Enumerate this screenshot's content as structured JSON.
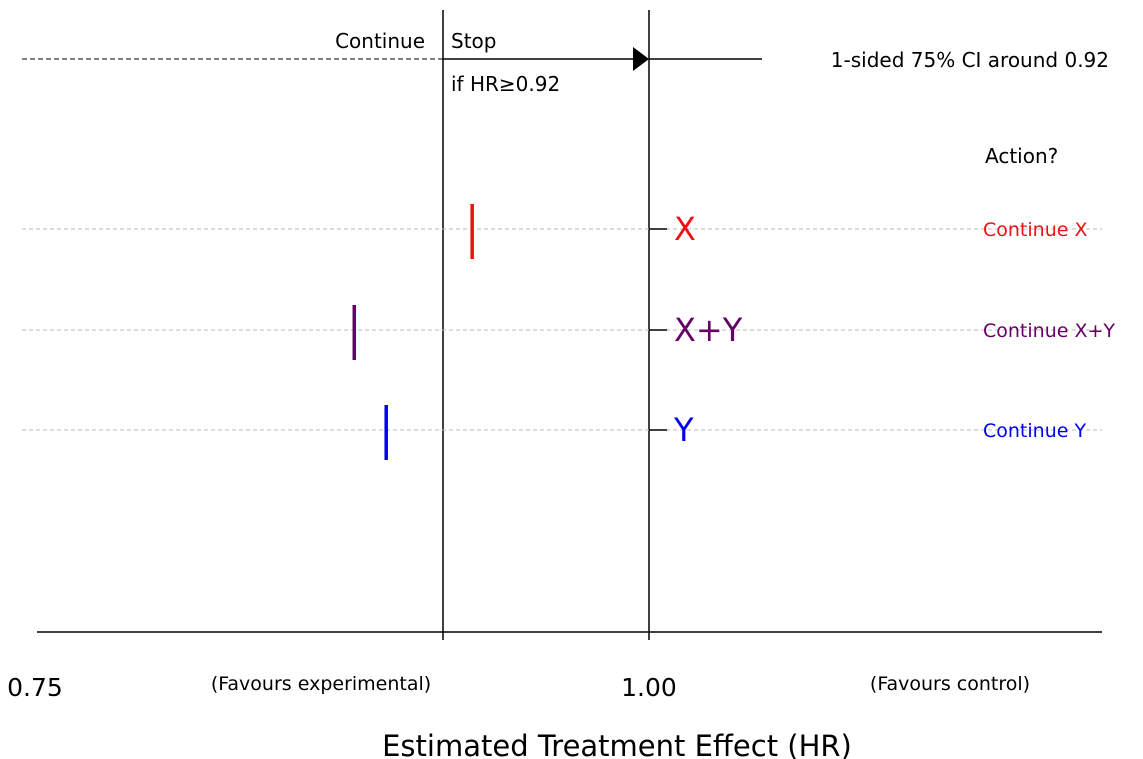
{
  "chart_data": {
    "type": "scatter",
    "x_axis_ticks": [
      {
        "label": "0.75",
        "value": 0.75
      },
      {
        "label": "1.00",
        "value": 1.0
      }
    ],
    "threshold": 0.92,
    "ylim_note": "",
    "xlabel": "Estimated Treatment Effect (HR)",
    "favours_left": "(Favours experimental)",
    "favours_right": "(Favours control)",
    "decision": {
      "continue_label": "Continue",
      "stop_label": "Stop",
      "stop_condition": "if HR≥0.92",
      "ci_label": "1-sided 75% CI around 0.92"
    },
    "action_header": "Action?",
    "series": [
      {
        "name": "X",
        "estimate": 0.928,
        "color": "#ee1111",
        "action": "Continue X"
      },
      {
        "name": "X+Y",
        "estimate": 0.88,
        "color": "#660066",
        "action": "Continue X+Y"
      },
      {
        "name": "Y",
        "estimate": 0.893,
        "color": "#0000ee",
        "action": "Continue Y"
      }
    ]
  }
}
